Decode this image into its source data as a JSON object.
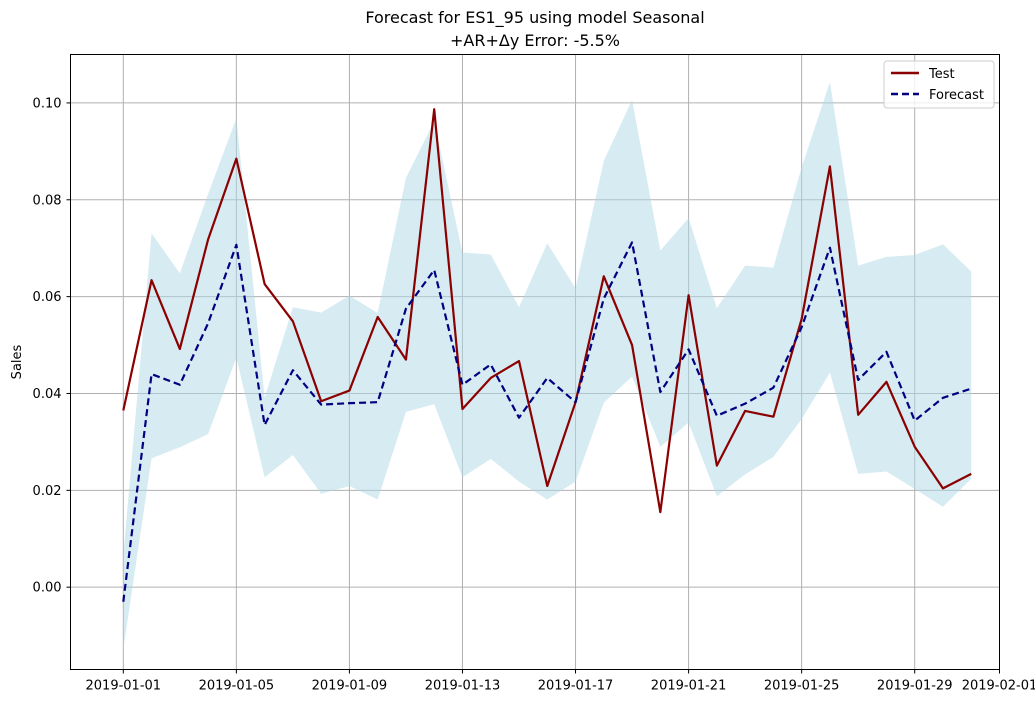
{
  "chart_data": {
    "type": "line",
    "title_line1": "Forecast for ES1_95 using model Seasonal",
    "title_line2": "+AR+Δy Error: -5.5%",
    "xlabel": "",
    "ylabel": "Sales",
    "x_start": "2019-01-01",
    "x": [
      "2019-01-01",
      "2019-01-02",
      "2019-01-03",
      "2019-01-04",
      "2019-01-05",
      "2019-01-06",
      "2019-01-07",
      "2019-01-08",
      "2019-01-09",
      "2019-01-10",
      "2019-01-11",
      "2019-01-12",
      "2019-01-13",
      "2019-01-14",
      "2019-01-15",
      "2019-01-16",
      "2019-01-17",
      "2019-01-18",
      "2019-01-19",
      "2019-01-20",
      "2019-01-21",
      "2019-01-22",
      "2019-01-23",
      "2019-01-24",
      "2019-01-25",
      "2019-01-26",
      "2019-01-27",
      "2019-01-28",
      "2019-01-29",
      "2019-01-30",
      "2019-01-31"
    ],
    "xlim": [
      "2018-12-30.5",
      "2019-02-01.5"
    ],
    "ylim": [
      -0.017,
      0.11
    ],
    "x_ticks": [
      "2019-01-01",
      "2019-01-05",
      "2019-01-09",
      "2019-01-13",
      "2019-01-17",
      "2019-01-21",
      "2019-01-25",
      "2019-01-29",
      "2019-02-01"
    ],
    "y_ticks": [
      "0.00",
      "0.02",
      "0.04",
      "0.06",
      "0.08",
      "0.10"
    ],
    "grid": true,
    "legend_position": "top-right",
    "series": [
      {
        "name": "Test",
        "color": "#8b0000",
        "style": "solid",
        "values": [
          0.0365,
          0.0634,
          0.0492,
          0.0718,
          0.0885,
          0.0626,
          0.0549,
          0.0384,
          0.0406,
          0.0558,
          0.047,
          0.0987,
          0.0368,
          0.0432,
          0.0467,
          0.0209,
          0.0382,
          0.0642,
          0.05,
          0.0155,
          0.0603,
          0.0251,
          0.0364,
          0.0352,
          0.0554,
          0.0869,
          0.0356,
          0.0424,
          0.029,
          0.0204,
          0.0234
        ]
      },
      {
        "name": "Forecast",
        "color": "#000080",
        "style": "dashed",
        "values": [
          -0.003,
          0.044,
          0.0418,
          0.0545,
          0.0707,
          0.0335,
          0.0448,
          0.0377,
          0.038,
          0.0382,
          0.0575,
          0.0655,
          0.0418,
          0.046,
          0.035,
          0.0432,
          0.0382,
          0.0596,
          0.0712,
          0.0403,
          0.0491,
          0.0354,
          0.0379,
          0.0412,
          0.0537,
          0.0701,
          0.0428,
          0.0486,
          0.0344,
          0.0391,
          0.041
        ]
      }
    ],
    "band": {
      "color": "#add8e6",
      "upper": [
        0.0065,
        0.0731,
        0.0648,
        0.0812,
        0.0968,
        0.0391,
        0.0578,
        0.0567,
        0.0602,
        0.0566,
        0.0845,
        0.0962,
        0.0691,
        0.0687,
        0.0578,
        0.071,
        0.0617,
        0.088,
        0.1006,
        0.0695,
        0.0762,
        0.0576,
        0.0664,
        0.066,
        0.0867,
        0.1043,
        0.0664,
        0.0682,
        0.0686,
        0.0708,
        0.0652
      ],
      "lower": [
        -0.0128,
        0.0266,
        0.0289,
        0.0316,
        0.0474,
        0.0227,
        0.0273,
        0.0193,
        0.0209,
        0.0181,
        0.0362,
        0.0378,
        0.0227,
        0.0265,
        0.0218,
        0.0181,
        0.0218,
        0.0381,
        0.0435,
        0.029,
        0.034,
        0.0188,
        0.0233,
        0.0269,
        0.0347,
        0.0443,
        0.0234,
        0.0239,
        0.0203,
        0.0166,
        0.0224
      ]
    }
  }
}
